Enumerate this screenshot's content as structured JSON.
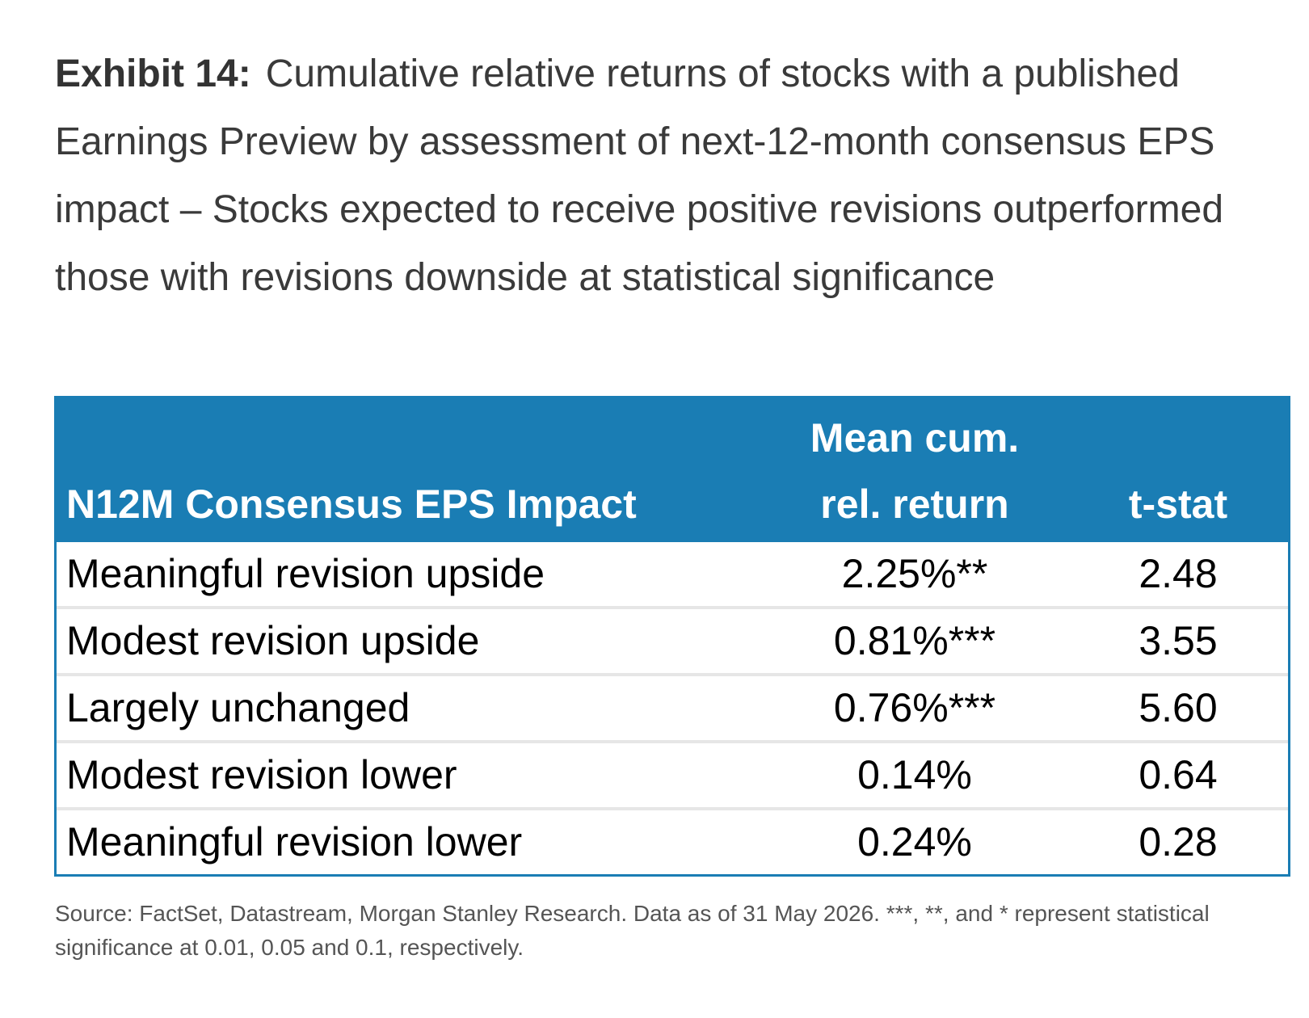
{
  "title": {
    "exhibit": "Exhibit 14:",
    "text": "Cumulative relative returns of stocks with a published Earnings Preview by assessment of next-12-month consensus EPS impact – Stocks expected to receive positive revisions outperformed those with revisions downside at statistical significance"
  },
  "colors": {
    "header_bg": "#1a7db4",
    "header_text": "#ffffff",
    "row_divider": "#e6e6e6"
  },
  "chart_data": {
    "type": "table",
    "columns": {
      "impact_line1": "",
      "impact_line2": "N12M Consensus EPS Impact",
      "mean_line1": "Mean cum.",
      "mean_line2": "rel. return",
      "tstat_line1": "",
      "tstat_line2": "t-stat"
    },
    "rows": [
      {
        "impact": "Meaningful revision upside",
        "mean": "2.25%**",
        "tstat": "2.48"
      },
      {
        "impact": "Modest revision upside",
        "mean": "0.81%***",
        "tstat": "3.55"
      },
      {
        "impact": "Largely unchanged",
        "mean": "0.76%***",
        "tstat": "5.60"
      },
      {
        "impact": "Modest revision lower",
        "mean": "0.14%",
        "tstat": "0.64"
      },
      {
        "impact": "Meaningful revision lower",
        "mean": "0.24%",
        "tstat": "0.28"
      }
    ]
  },
  "source": "Source: FactSet, Datastream, Morgan Stanley Research. Data as of 31 May 2026. ***, **, and * represent statistical significance at 0.01, 0.05 and 0.1, respectively."
}
